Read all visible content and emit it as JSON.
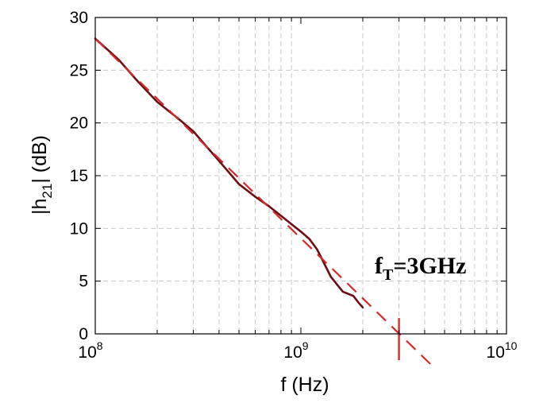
{
  "chart_data": {
    "type": "line",
    "xscale": "log",
    "xlim": [
      100000000,
      10000000000
    ],
    "ylim": [
      0,
      30
    ],
    "grid": true,
    "xlabel": "f (Hz)",
    "ylabel": {
      "main": "|h",
      "sub": "21",
      "tail": "| (dB)"
    },
    "x_ticks": [
      {
        "base": "10",
        "exp": "8"
      },
      {
        "base": "10",
        "exp": "9"
      },
      {
        "base": "10",
        "exp": "10"
      }
    ],
    "y_ticks": [
      "0",
      "5",
      "10",
      "15",
      "20",
      "25",
      "30"
    ],
    "series": [
      {
        "style": "solid",
        "color": "#6b0f14",
        "x": [
          100000000,
          130000000,
          160000000,
          200000000,
          250000000,
          300000000,
          400000000,
          500000000,
          600000000,
          700000000,
          800000000,
          900000000,
          1000000000,
          1100000000,
          1200000000,
          1400000000,
          1600000000,
          1800000000,
          1900000000,
          2000000000
        ],
        "y": [
          28.0,
          26.0,
          24.0,
          22.0,
          20.5,
          19.2,
          16.4,
          14.2,
          13.0,
          12.1,
          11.2,
          10.4,
          9.7,
          9.0,
          8.0,
          5.4,
          4.0,
          3.6,
          3.0,
          2.5
        ]
      },
      {
        "style": "dashed",
        "color": "#d42a2a",
        "x": [
          100000000,
          4500000000
        ],
        "y": [
          28.0,
          -3.3
        ]
      }
    ],
    "marker": {
      "x": 3000000000,
      "color": "#d42a2a"
    },
    "annotation": {
      "main": "f",
      "sub": "T",
      "tail": "=3GHz"
    }
  }
}
